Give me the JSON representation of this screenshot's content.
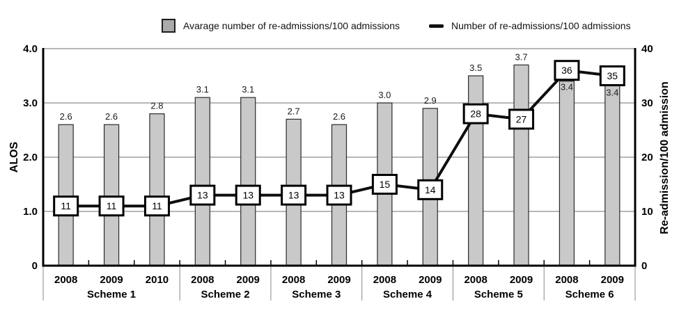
{
  "legend": {
    "bar_label": "Avarage number of re-admissions/100 admissions",
    "line_label": "Number of re-admissions/100 admissions"
  },
  "chart_data": {
    "type": "bar+line",
    "groups": [
      {
        "label": "Scheme 1",
        "years": [
          "2008",
          "2009",
          "2010"
        ]
      },
      {
        "label": "Scheme 2",
        "years": [
          "2008",
          "2009"
        ]
      },
      {
        "label": "Scheme 3",
        "years": [
          "2008",
          "2009"
        ]
      },
      {
        "label": "Scheme 4",
        "years": [
          "2008",
          "2009"
        ]
      },
      {
        "label": "Scheme 5",
        "years": [
          "2008",
          "2009"
        ]
      },
      {
        "label": "Scheme 6",
        "years": [
          "2008",
          "2009"
        ]
      }
    ],
    "bar_series": {
      "name": "Avarage number of re-admissions/100 admissions",
      "values": [
        2.6,
        2.6,
        2.8,
        3.1,
        3.1,
        2.7,
        2.6,
        3.0,
        2.9,
        3.5,
        3.7,
        3.4,
        3.4
      ],
      "label_position": [
        "above",
        "above",
        "above",
        "above",
        "above",
        "above",
        "above",
        "above",
        "above",
        "above",
        "above",
        "inside",
        "inside"
      ]
    },
    "line_series": {
      "name": "Number of re-admissions/100 admissions",
      "values": [
        11,
        11,
        11,
        13,
        13,
        13,
        13,
        15,
        14,
        28,
        27,
        36,
        35
      ]
    },
    "left_axis": {
      "label": "ALOS",
      "range": [
        0,
        4
      ],
      "ticks": [
        0,
        1,
        2,
        3,
        4
      ],
      "tick_labels": [
        "0",
        "1.0",
        "2.0",
        "3.0",
        "4.0"
      ]
    },
    "right_axis": {
      "label": "Re-admission/100 admission",
      "range": [
        0,
        40
      ],
      "ticks": [
        0,
        10,
        20,
        30,
        40
      ],
      "tick_labels": [
        "0",
        "10",
        "20",
        "30",
        "40"
      ]
    },
    "grid": true,
    "legend_position": "top",
    "colors": {
      "bar_fill": "#c9c9c9",
      "bar_border": "#2a2a2a",
      "line": "#0d0d0d",
      "marker_fill": "#ffffff",
      "marker_border": "#000000",
      "grid": "#8c8c8c",
      "axis": "#000000",
      "separator": "#888888",
      "text": "#000000"
    }
  }
}
